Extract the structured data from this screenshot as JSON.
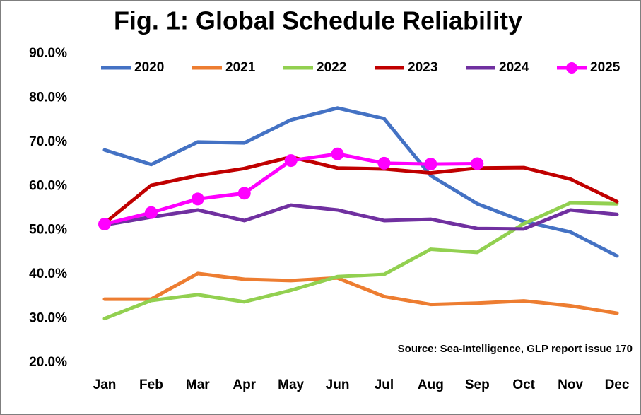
{
  "chart_data": {
    "type": "line",
    "title": "Fig. 1: Global Schedule Reliability",
    "annotation": "Source: Sea-Intelligence, GLP report issue 170",
    "categories": [
      "Jan",
      "Feb",
      "Mar",
      "Apr",
      "May",
      "Jun",
      "Jul",
      "Aug",
      "Sep",
      "Oct",
      "Nov",
      "Dec"
    ],
    "series": [
      {
        "name": "2020",
        "color": "#4472c4",
        "values": [
          68.2,
          64.9,
          70.0,
          69.8,
          75.0,
          77.7,
          75.3,
          62.4,
          56.0,
          52.0,
          49.6,
          44.2
        ]
      },
      {
        "name": "2021",
        "color": "#ed7d31",
        "values": [
          34.4,
          34.4,
          40.2,
          38.9,
          38.6,
          39.2,
          35.0,
          33.2,
          33.5,
          34.0,
          32.9,
          31.2
        ]
      },
      {
        "name": "2022",
        "color": "#92d050",
        "values": [
          30.0,
          34.1,
          35.4,
          33.8,
          36.4,
          39.5,
          40.0,
          45.7,
          45.0,
          51.5,
          56.2,
          56.0
        ]
      },
      {
        "name": "2023",
        "color": "#c00000",
        "values": [
          51.6,
          60.2,
          62.4,
          64.0,
          66.6,
          64.1,
          63.9,
          63.0,
          64.1,
          64.2,
          61.6,
          56.5
        ]
      },
      {
        "name": "2024",
        "color": "#7030a0",
        "values": [
          51.2,
          53.0,
          54.6,
          52.2,
          55.7,
          54.6,
          52.2,
          52.5,
          50.4,
          50.3,
          54.6,
          53.6
        ]
      },
      {
        "name": "2025",
        "color": "#ff00ff",
        "markers": true,
        "values": [
          51.4,
          54.0,
          57.1,
          58.4,
          65.8,
          67.3,
          65.2,
          65.0,
          65.1,
          null,
          null,
          null
        ]
      }
    ],
    "ylim": [
      20,
      90
    ],
    "yticks": [
      {
        "value": 20,
        "label": "20.0%"
      },
      {
        "value": 30,
        "label": "30.0%"
      },
      {
        "value": 40,
        "label": "40.0%"
      },
      {
        "value": 50,
        "label": "50.0%"
      },
      {
        "value": 60,
        "label": "60.0%"
      },
      {
        "value": 70,
        "label": "70.0%"
      },
      {
        "value": 80,
        "label": "80.0%"
      },
      {
        "value": 90,
        "label": "90.0%"
      }
    ],
    "grid": false,
    "legend": "top"
  }
}
